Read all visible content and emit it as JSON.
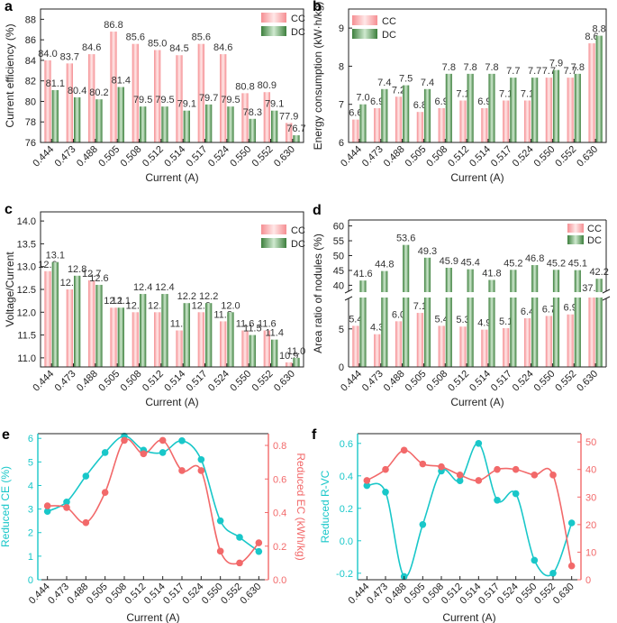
{
  "colors": {
    "cc_bar": "#F7A3A5",
    "dc_bar": "#5E9E5E",
    "cyan": "#19C7C9",
    "red": "#F2696A",
    "axis": "#222222"
  },
  "chart_data": [
    {
      "panel_label": "a",
      "type": "bar",
      "title": "",
      "xlabel": "Current (A)",
      "ylabel": "Current efficiency (%)",
      "categories": [
        "0.444",
        "0.473",
        "0.488",
        "0.505",
        "0.508",
        "0.512",
        "0.514",
        "0.517",
        "0.524",
        "0.550",
        "0.552",
        "0.630"
      ],
      "ylim": [
        76,
        89
      ],
      "yticks": [
        "76",
        "78",
        "80",
        "82",
        "84",
        "86",
        "88"
      ],
      "legend_position": "top-right",
      "series": [
        {
          "name": "CC",
          "values": [
            84.0,
            83.7,
            84.6,
            86.8,
            85.6,
            85.0,
            84.5,
            85.6,
            84.6,
            80.8,
            80.9,
            77.9
          ],
          "labels": [
            "84.0",
            "83.7",
            "84.6",
            "86.8",
            "85.6",
            "85.0",
            "84.5",
            "85.6",
            "84.6",
            "80.8",
            "80.9",
            "77.9"
          ]
        },
        {
          "name": "DC",
          "values": [
            81.1,
            80.4,
            80.2,
            81.4,
            79.5,
            79.5,
            79.1,
            79.7,
            79.5,
            78.3,
            79.1,
            76.7
          ],
          "labels": [
            "81.1",
            "80.4",
            "80.2",
            "81.4",
            "79.5",
            "79.5",
            "79.1",
            "79.7",
            "79.5",
            "78.3",
            "79.1",
            "76.7"
          ]
        }
      ]
    },
    {
      "panel_label": "b",
      "type": "bar",
      "title": "",
      "xlabel": "Current (A)",
      "ylabel": "Energy consumption (kW·h/kg)",
      "categories": [
        "0.444",
        "0.473",
        "0.488",
        "0.505",
        "0.508",
        "0.512",
        "0.514",
        "0.517",
        "0.524",
        "0.550",
        "0.552",
        "0.630"
      ],
      "ylim": [
        6,
        9.5
      ],
      "yticks": [
        "6",
        "7",
        "8",
        "9"
      ],
      "legend_position": "top-left",
      "series": [
        {
          "name": "CC",
          "values": [
            6.6,
            6.9,
            7.2,
            6.8,
            6.9,
            7.1,
            6.9,
            7.1,
            7.1,
            7.7,
            7.7,
            8.6
          ],
          "labels": [
            "6.6",
            "6.9",
            "7.2",
            "6.8",
            "6.9",
            "7.1",
            "6.9",
            "7.1",
            "7.1",
            "7.7",
            "7.7",
            "8.6"
          ]
        },
        {
          "name": "DC",
          "values": [
            7.0,
            7.4,
            7.5,
            7.4,
            7.8,
            7.8,
            7.8,
            7.7,
            7.7,
            7.9,
            7.8,
            8.8
          ],
          "labels": [
            "7.0",
            "7.4",
            "7.5",
            "7.4",
            "7.8",
            "7.8",
            "7.8",
            "7.7",
            "7.7",
            "7.9",
            "7.8",
            "8.8"
          ]
        }
      ]
    },
    {
      "panel_label": "c",
      "type": "bar",
      "title": "",
      "xlabel": "Current (A)",
      "ylabel": "Voltage/Current",
      "categories": [
        "0.444",
        "0.473",
        "0.488",
        "0.505",
        "0.508",
        "0.512",
        "0.514",
        "0.517",
        "0.524",
        "0.550",
        "0.552",
        "0.630"
      ],
      "ylim": [
        10.8,
        14.2
      ],
      "yticks": [
        "11.0",
        "11.5",
        "12.0",
        "12.5",
        "13.0",
        "13.5",
        "14.0"
      ],
      "legend_position": "top-right",
      "series": [
        {
          "name": "CC",
          "values": [
            12.9,
            12.5,
            12.7,
            12.1,
            12.0,
            12.0,
            11.6,
            12.0,
            11.8,
            11.6,
            11.6,
            10.9
          ],
          "labels": [
            "12.9",
            "12.5",
            "12.7",
            "12.1",
            "12.0",
            "12.0",
            "11.6",
            "12.0",
            "11.8",
            "11.6",
            "11.6",
            "10.9"
          ]
        },
        {
          "name": "DC",
          "values": [
            13.1,
            12.8,
            12.6,
            12.1,
            12.4,
            12.4,
            12.2,
            12.2,
            12.0,
            11.5,
            11.4,
            11.0
          ],
          "labels": [
            "13.1",
            "12.8",
            "12.6",
            "12.1",
            "12.4",
            "12.4",
            "12.2",
            "12.2",
            "12.0",
            "11.5",
            "11.4",
            "11.0"
          ]
        }
      ]
    },
    {
      "panel_label": "d",
      "type": "bar",
      "title": "",
      "xlabel": "Current (A)",
      "ylabel": "Area ratio of nodules (%)",
      "categories": [
        "0.444",
        "0.473",
        "0.488",
        "0.505",
        "0.508",
        "0.512",
        "0.514",
        "0.517",
        "0.524",
        "0.550",
        "0.552",
        "0.630"
      ],
      "axis_break": {
        "lower_range": [
          0,
          9
        ],
        "upper_range": [
          38,
          62
        ]
      },
      "yticks_lower": [
        "0",
        "5"
      ],
      "yticks_upper": [
        "40",
        "45",
        "50",
        "55",
        "60"
      ],
      "legend_position": "top-right",
      "series": [
        {
          "name": "CC",
          "values": [
            5.4,
            4.3,
            6.0,
            7.1,
            5.4,
            5.3,
            4.9,
            5.1,
            6.4,
            6.7,
            6.9,
            37.3
          ],
          "labels": [
            "5.4",
            "4.3",
            "6.0",
            "7.1",
            "5.4",
            "5.3",
            "4.9",
            "5.1",
            "6.4",
            "6.7",
            "6.9",
            "37.3"
          ]
        },
        {
          "name": "DC",
          "values": [
            41.6,
            44.8,
            53.6,
            49.3,
            45.9,
            45.4,
            41.8,
            45.2,
            46.8,
            45.2,
            45.1,
            42.2
          ],
          "labels": [
            "41.6",
            "44.8",
            "53.6",
            "49.3",
            "45.9",
            "45.4",
            "41.8",
            "45.2",
            "46.8",
            "45.2",
            "45.1",
            "42.2"
          ]
        }
      ]
    },
    {
      "panel_label": "e",
      "type": "scatter",
      "xlabel": "Current (A)",
      "ylabel_left": "Reduced CE (%)",
      "ylabel_right": "Reduced EC (kWh/kg)",
      "categories": [
        "0.444",
        "0.473",
        "0.488",
        "0.505",
        "0.508",
        "0.512",
        "0.514",
        "0.517",
        "0.524",
        "0.550",
        "0.552",
        "0.630"
      ],
      "ylim_left": [
        0,
        6.2
      ],
      "yticks_left": [
        "0",
        "1",
        "2",
        "3",
        "4",
        "5",
        "6"
      ],
      "ylim_right": [
        0,
        0.87
      ],
      "yticks_right": [
        "0.0",
        "0.2",
        "0.4",
        "0.6",
        "0.8"
      ],
      "series": [
        {
          "name": "Reduced CE",
          "axis": "left",
          "values": [
            2.9,
            3.3,
            4.4,
            5.4,
            6.1,
            5.5,
            5.4,
            5.9,
            5.1,
            2.5,
            1.8,
            1.2
          ]
        },
        {
          "name": "Reduced EC",
          "axis": "right",
          "values": [
            0.44,
            0.43,
            0.34,
            0.52,
            0.83,
            0.75,
            0.83,
            0.65,
            0.65,
            0.17,
            0.1,
            0.22
          ]
        }
      ]
    },
    {
      "panel_label": "f",
      "type": "scatter",
      "xlabel": "Current (A)",
      "ylabel_left": "Reduced R-VC",
      "ylabel_right": "",
      "categories": [
        "0.444",
        "0.473",
        "0.488",
        "0.505",
        "0.508",
        "0.512",
        "0.514",
        "0.517",
        "0.524",
        "0.550",
        "0.552",
        "0.630"
      ],
      "ylim_left": [
        -0.24,
        0.66
      ],
      "yticks_left": [
        "-0.2",
        "0.0",
        "0.2",
        "0.4",
        "0.6"
      ],
      "ylim_right": [
        0,
        53
      ],
      "yticks_right": [
        "0",
        "10",
        "20",
        "30",
        "40",
        "50"
      ],
      "series": [
        {
          "name": "Reduced R-VC",
          "axis": "left",
          "values": [
            0.34,
            0.3,
            -0.22,
            0.1,
            0.43,
            0.37,
            0.6,
            0.25,
            0.29,
            -0.12,
            -0.2,
            0.11
          ]
        },
        {
          "name": "Area ratio",
          "axis": "right",
          "values": [
            36,
            40,
            47,
            42,
            41,
            38,
            36,
            40,
            40,
            38,
            38,
            5
          ]
        }
      ]
    }
  ]
}
